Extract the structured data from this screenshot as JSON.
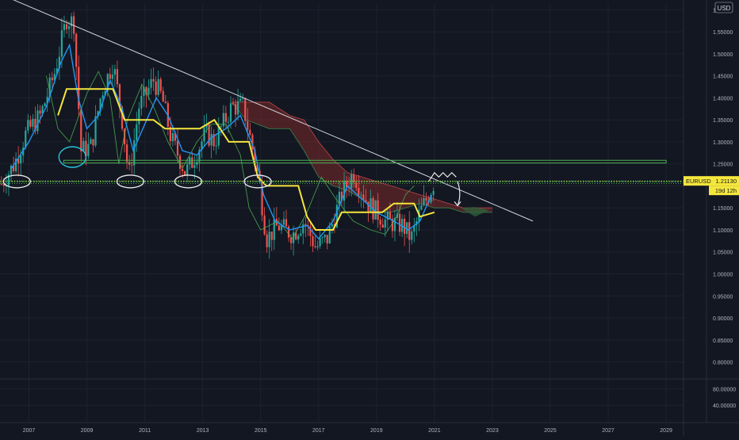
{
  "currency_label": "USD",
  "price_badge": {
    "symbol": "EURUSD",
    "price": "1.21130",
    "countdown": "19d 12h",
    "value": 1.2113
  },
  "colors": {
    "background": "#131722",
    "grid": "#1e2230",
    "axis_text": "#b2b5be",
    "up_candle": "#26a69a",
    "down_candle": "#ef5350",
    "kijun": "#f5e63c",
    "tenkan": "#2196f3",
    "chikou": "#4caf50",
    "kumo_bear": "#7b2a2a",
    "kumo_bull": "#2e5e3a",
    "trendline": "#d1d4dc",
    "support_zone": "#4caf50",
    "badge": "#f5e63c"
  },
  "chart_data": [
    {
      "type": "candlestick",
      "symbol": "EURUSD",
      "timeframe": "monthly",
      "x_ticks": [
        "2007",
        "2009",
        "2011",
        "2013",
        "2015",
        "2017",
        "2019",
        "2021",
        "2023",
        "2025",
        "2027",
        "2029"
      ],
      "y_ticks": [
        "1.60000",
        "1.55000",
        "1.50000",
        "1.45000",
        "1.40000",
        "1.35000",
        "1.30000",
        "1.25000",
        "1.20000",
        "1.15000",
        "1.10000",
        "1.05000",
        "1.00000",
        "0.95000",
        "0.90000",
        "0.85000",
        "0.80000"
      ],
      "ylim": [
        0.765,
        1.615
      ],
      "xlim": [
        2006.0,
        2029.6
      ],
      "price_path": [
        [
          2006.0,
          1.2
        ],
        [
          2006.5,
          1.25
        ],
        [
          2006.9,
          1.32
        ],
        [
          2007.4,
          1.36
        ],
        [
          2007.9,
          1.46
        ],
        [
          2008.3,
          1.58
        ],
        [
          2008.55,
          1.57
        ],
        [
          2008.8,
          1.28
        ],
        [
          2009.15,
          1.29
        ],
        [
          2009.5,
          1.41
        ],
        [
          2009.9,
          1.48
        ],
        [
          2010.2,
          1.36
        ],
        [
          2010.45,
          1.22
        ],
        [
          2010.8,
          1.38
        ],
        [
          2011.3,
          1.44
        ],
        [
          2011.6,
          1.4
        ],
        [
          2011.9,
          1.31
        ],
        [
          2012.4,
          1.23
        ],
        [
          2012.6,
          1.25
        ],
        [
          2013.1,
          1.32
        ],
        [
          2013.4,
          1.3
        ],
        [
          2014.0,
          1.38
        ],
        [
          2014.4,
          1.38
        ],
        [
          2014.7,
          1.29
        ],
        [
          2014.95,
          1.21
        ],
        [
          2015.2,
          1.08
        ],
        [
          2015.6,
          1.11
        ],
        [
          2016.1,
          1.09
        ],
        [
          2016.5,
          1.12
        ],
        [
          2016.9,
          1.06
        ],
        [
          2017.3,
          1.08
        ],
        [
          2017.8,
          1.18
        ],
        [
          2018.2,
          1.23
        ],
        [
          2018.7,
          1.16
        ],
        [
          2019.3,
          1.12
        ],
        [
          2019.9,
          1.11
        ],
        [
          2020.2,
          1.08
        ],
        [
          2020.5,
          1.14
        ],
        [
          2020.8,
          1.18
        ],
        [
          2021.0,
          1.21
        ]
      ],
      "tenkan_path": [
        [
          2006.4,
          1.24
        ],
        [
          2007.0,
          1.3
        ],
        [
          2007.6,
          1.38
        ],
        [
          2008.1,
          1.48
        ],
        [
          2008.4,
          1.52
        ],
        [
          2008.7,
          1.4
        ],
        [
          2009.0,
          1.33
        ],
        [
          2009.4,
          1.36
        ],
        [
          2009.8,
          1.44
        ],
        [
          2010.2,
          1.38
        ],
        [
          2010.6,
          1.28
        ],
        [
          2011.0,
          1.34
        ],
        [
          2011.4,
          1.4
        ],
        [
          2011.8,
          1.36
        ],
        [
          2012.3,
          1.28
        ],
        [
          2012.8,
          1.27
        ],
        [
          2013.3,
          1.31
        ],
        [
          2013.8,
          1.33
        ],
        [
          2014.3,
          1.36
        ],
        [
          2014.8,
          1.28
        ],
        [
          2015.1,
          1.18
        ],
        [
          2015.5,
          1.12
        ],
        [
          2016.0,
          1.1
        ],
        [
          2016.6,
          1.11
        ],
        [
          2017.0,
          1.08
        ],
        [
          2017.5,
          1.12
        ],
        [
          2018.0,
          1.2
        ],
        [
          2018.5,
          1.17
        ],
        [
          2019.0,
          1.14
        ],
        [
          2019.6,
          1.12
        ],
        [
          2020.1,
          1.1
        ],
        [
          2020.5,
          1.12
        ],
        [
          2020.9,
          1.18
        ]
      ],
      "kijun_path": [
        [
          2008.0,
          1.36
        ],
        [
          2008.3,
          1.42
        ],
        [
          2008.9,
          1.42
        ],
        [
          2009.9,
          1.42
        ],
        [
          2010.3,
          1.35
        ],
        [
          2011.3,
          1.35
        ],
        [
          2011.7,
          1.33
        ],
        [
          2012.9,
          1.33
        ],
        [
          2013.4,
          1.35
        ],
        [
          2013.9,
          1.3
        ],
        [
          2014.6,
          1.3
        ],
        [
          2014.9,
          1.22
        ],
        [
          2015.2,
          1.2
        ],
        [
          2016.3,
          1.2
        ],
        [
          2016.6,
          1.13
        ],
        [
          2016.9,
          1.1
        ],
        [
          2017.5,
          1.1
        ],
        [
          2017.8,
          1.14
        ],
        [
          2019.2,
          1.14
        ],
        [
          2019.6,
          1.16
        ],
        [
          2020.3,
          1.16
        ],
        [
          2020.5,
          1.13
        ],
        [
          2021.0,
          1.14
        ]
      ],
      "chikou_path": [
        [
          2007.6,
          1.45
        ],
        [
          2008.0,
          1.33
        ],
        [
          2008.4,
          1.3
        ],
        [
          2009.0,
          1.41
        ],
        [
          2009.4,
          1.46
        ],
        [
          2009.8,
          1.4
        ],
        [
          2010.1,
          1.25
        ],
        [
          2010.4,
          1.35
        ],
        [
          2010.9,
          1.43
        ],
        [
          2011.3,
          1.38
        ],
        [
          2011.8,
          1.3
        ],
        [
          2012.3,
          1.24
        ],
        [
          2012.8,
          1.3
        ],
        [
          2013.3,
          1.34
        ],
        [
          2013.8,
          1.34
        ],
        [
          2014.3,
          1.27
        ],
        [
          2014.6,
          1.15
        ],
        [
          2015.0,
          1.1
        ],
        [
          2015.6,
          1.12
        ],
        [
          2016.1,
          1.08
        ],
        [
          2016.6,
          1.14
        ],
        [
          2017.1,
          1.22
        ],
        [
          2017.6,
          1.17
        ],
        [
          2018.2,
          1.12
        ],
        [
          2018.8,
          1.1
        ],
        [
          2019.3,
          1.09
        ],
        [
          2019.7,
          1.13
        ],
        [
          2020.0,
          1.18
        ],
        [
          2020.3,
          1.2
        ]
      ],
      "kumo": [
        [
          2014.0,
          1.39,
          1.39
        ],
        [
          2014.5,
          1.35,
          1.39
        ],
        [
          2015.3,
          1.33,
          1.39
        ],
        [
          2016.0,
          1.33,
          1.36
        ],
        [
          2016.5,
          1.28,
          1.35
        ],
        [
          2017.0,
          1.22,
          1.3
        ],
        [
          2017.5,
          1.2,
          1.26
        ],
        [
          2018.0,
          1.19,
          1.23
        ],
        [
          2018.5,
          1.17,
          1.22
        ],
        [
          2019.0,
          1.14,
          1.21
        ],
        [
          2019.5,
          1.14,
          1.2
        ],
        [
          2020.0,
          1.15,
          1.19
        ],
        [
          2020.5,
          1.16,
          1.18
        ],
        [
          2021.0,
          1.15,
          1.17
        ],
        [
          2021.5,
          1.15,
          1.16
        ],
        [
          2022.0,
          1.14,
          1.15
        ],
        [
          2022.6,
          1.14,
          1.15
        ],
        [
          2023.0,
          1.14,
          1.15
        ]
      ],
      "trendline": [
        [
          2006.2,
          1.63
        ],
        [
          2024.4,
          1.12
        ]
      ],
      "support_zone": [
        1.252,
        1.258
      ],
      "support_line": 1.21,
      "circled_lows": [
        [
          2006.2,
          1.21
        ],
        [
          2008.5,
          1.26
        ],
        [
          2010.5,
          1.21
        ],
        [
          2012.5,
          1.21
        ],
        [
          2014.9,
          1.21
        ]
      ],
      "zigzag": [
        [
          2020.8,
          1.21
        ],
        [
          2021.0,
          1.23
        ],
        [
          2021.15,
          1.22
        ],
        [
          2021.3,
          1.23
        ],
        [
          2021.45,
          1.22
        ],
        [
          2021.6,
          1.23
        ],
        [
          2021.75,
          1.22
        ]
      ],
      "arrow": [
        [
          2021.8,
          1.21
        ],
        [
          2021.95,
          1.18
        ],
        [
          2021.8,
          1.155
        ]
      ]
    },
    {
      "type": "line",
      "title": "",
      "y_ticks": [
        "80.00000",
        "40.00000"
      ],
      "ylim": [
        0,
        100
      ]
    }
  ]
}
